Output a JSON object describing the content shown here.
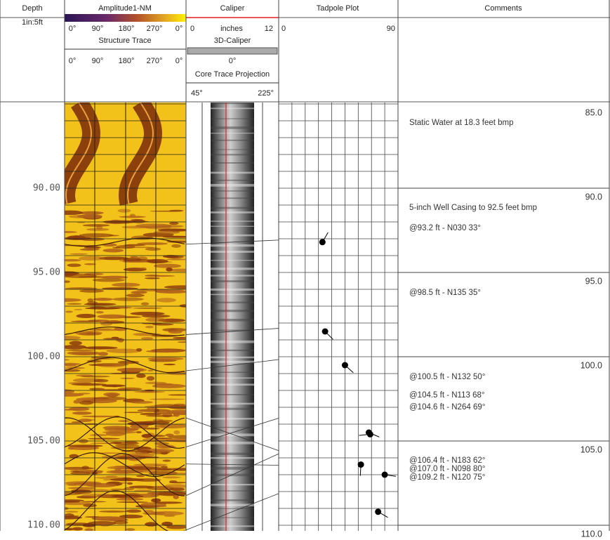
{
  "header": {
    "depth": "Depth",
    "scale": "1in:5ft",
    "amplitude": "Amplitude1-NM",
    "amplitude_ticks": [
      "0°",
      "90°",
      "180°",
      "270°",
      "0°"
    ],
    "structure_trace": "Structure Trace",
    "structure_ticks": [
      "0°",
      "90°",
      "180°",
      "270°",
      "0°"
    ],
    "caliper": "Caliper",
    "caliper_min": "0",
    "caliper_unit": "inches",
    "caliper_max": "12",
    "caliper_3d": "3D-Caliper",
    "caliper_3d_tick": "0°",
    "core_trace": "Core Trace Projection",
    "core_ticks": [
      "45°",
      "225°"
    ],
    "tadpole": "Tadpole Plot",
    "tadpole_min": "0",
    "tadpole_max": "90",
    "comments": "Comments"
  },
  "depth_labels": [
    "90.00",
    "95.00",
    "100.00",
    "105.00",
    "110.00"
  ],
  "comment_depths": [
    "85.0",
    "90.0",
    "95.0",
    "100.0",
    "105.0",
    "110.0"
  ],
  "comments": [
    "Static Water at 18.3 feet bmp",
    "5-inch Well Casing to 92.5 feet bmp",
    "@93.2 ft - N030 33°",
    "@98.5 ft - N135 35°",
    "@100.5 ft - N132 50°",
    "@104.5 ft - N113 68°",
    "@104.6 ft - N264 69°",
    "@106.4 ft - N183 62°",
    "@107.0 ft - N098 80°",
    "@109.2 ft - N120 75°"
  ],
  "tadpoles": [
    {
      "depth": 93.2,
      "dip": 33,
      "azimuth": 30
    },
    {
      "depth": 98.5,
      "dip": 35,
      "azimuth": 135
    },
    {
      "depth": 100.5,
      "dip": 50,
      "azimuth": 132
    },
    {
      "depth": 104.5,
      "dip": 68,
      "azimuth": 113
    },
    {
      "depth": 104.6,
      "dip": 69,
      "azimuth": 264
    },
    {
      "depth": 106.4,
      "dip": 62,
      "azimuth": 183
    },
    {
      "depth": 107.0,
      "dip": 80,
      "azimuth": 98
    },
    {
      "depth": 109.2,
      "dip": 75,
      "azimuth": 120
    }
  ]
}
